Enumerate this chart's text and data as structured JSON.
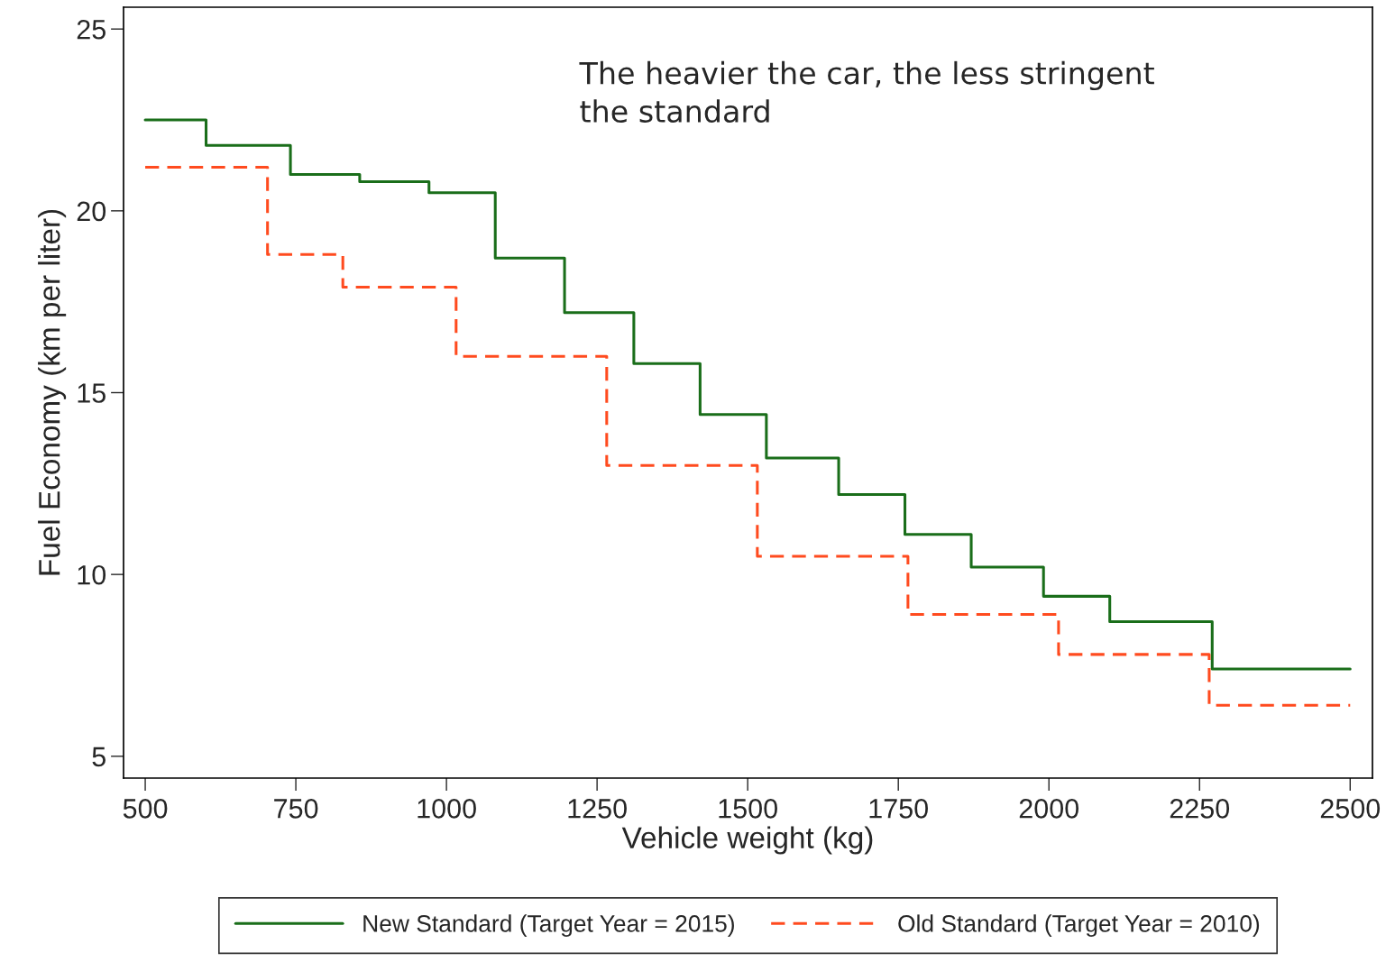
{
  "chart_data": {
    "type": "step",
    "xlabel": "Vehicle weight (kg)",
    "ylabel": "Fuel Economy (km per liter)",
    "annotations": [
      "The heavier the car, the less stringent\nthe standard"
    ],
    "xlim": [
      464,
      2537
    ],
    "ylim": [
      4.4,
      25.6
    ],
    "xticks": [
      500,
      750,
      1000,
      1250,
      1500,
      1750,
      2000,
      2250,
      2500
    ],
    "yticks": [
      5,
      10,
      15,
      20,
      25
    ],
    "grid": false,
    "legend": "bottom",
    "series": [
      {
        "name": "New Standard (Target Year = 2015)",
        "color": "#1a6e1a",
        "line_style": "solid",
        "x": [
          500,
          601,
          741,
          856,
          971,
          1081,
          1196,
          1311,
          1421,
          1531,
          1651,
          1761,
          1871,
          1991,
          2101,
          2271,
          2500
        ],
        "values": [
          22.5,
          21.8,
          21.0,
          20.8,
          20.5,
          18.7,
          17.2,
          15.8,
          14.4,
          13.2,
          12.2,
          11.1,
          10.2,
          9.4,
          8.7,
          7.4,
          7.4
        ]
      },
      {
        "name": "Old Standard (Target Year = 2010)",
        "color": "#ff4b1f",
        "line_style": "dashed",
        "x": [
          500,
          703,
          828,
          1016,
          1266,
          1516,
          1766,
          2016,
          2266,
          2500
        ],
        "values": [
          21.2,
          18.8,
          17.9,
          16.0,
          13.0,
          10.5,
          8.9,
          7.8,
          6.4,
          6.4
        ]
      }
    ]
  }
}
